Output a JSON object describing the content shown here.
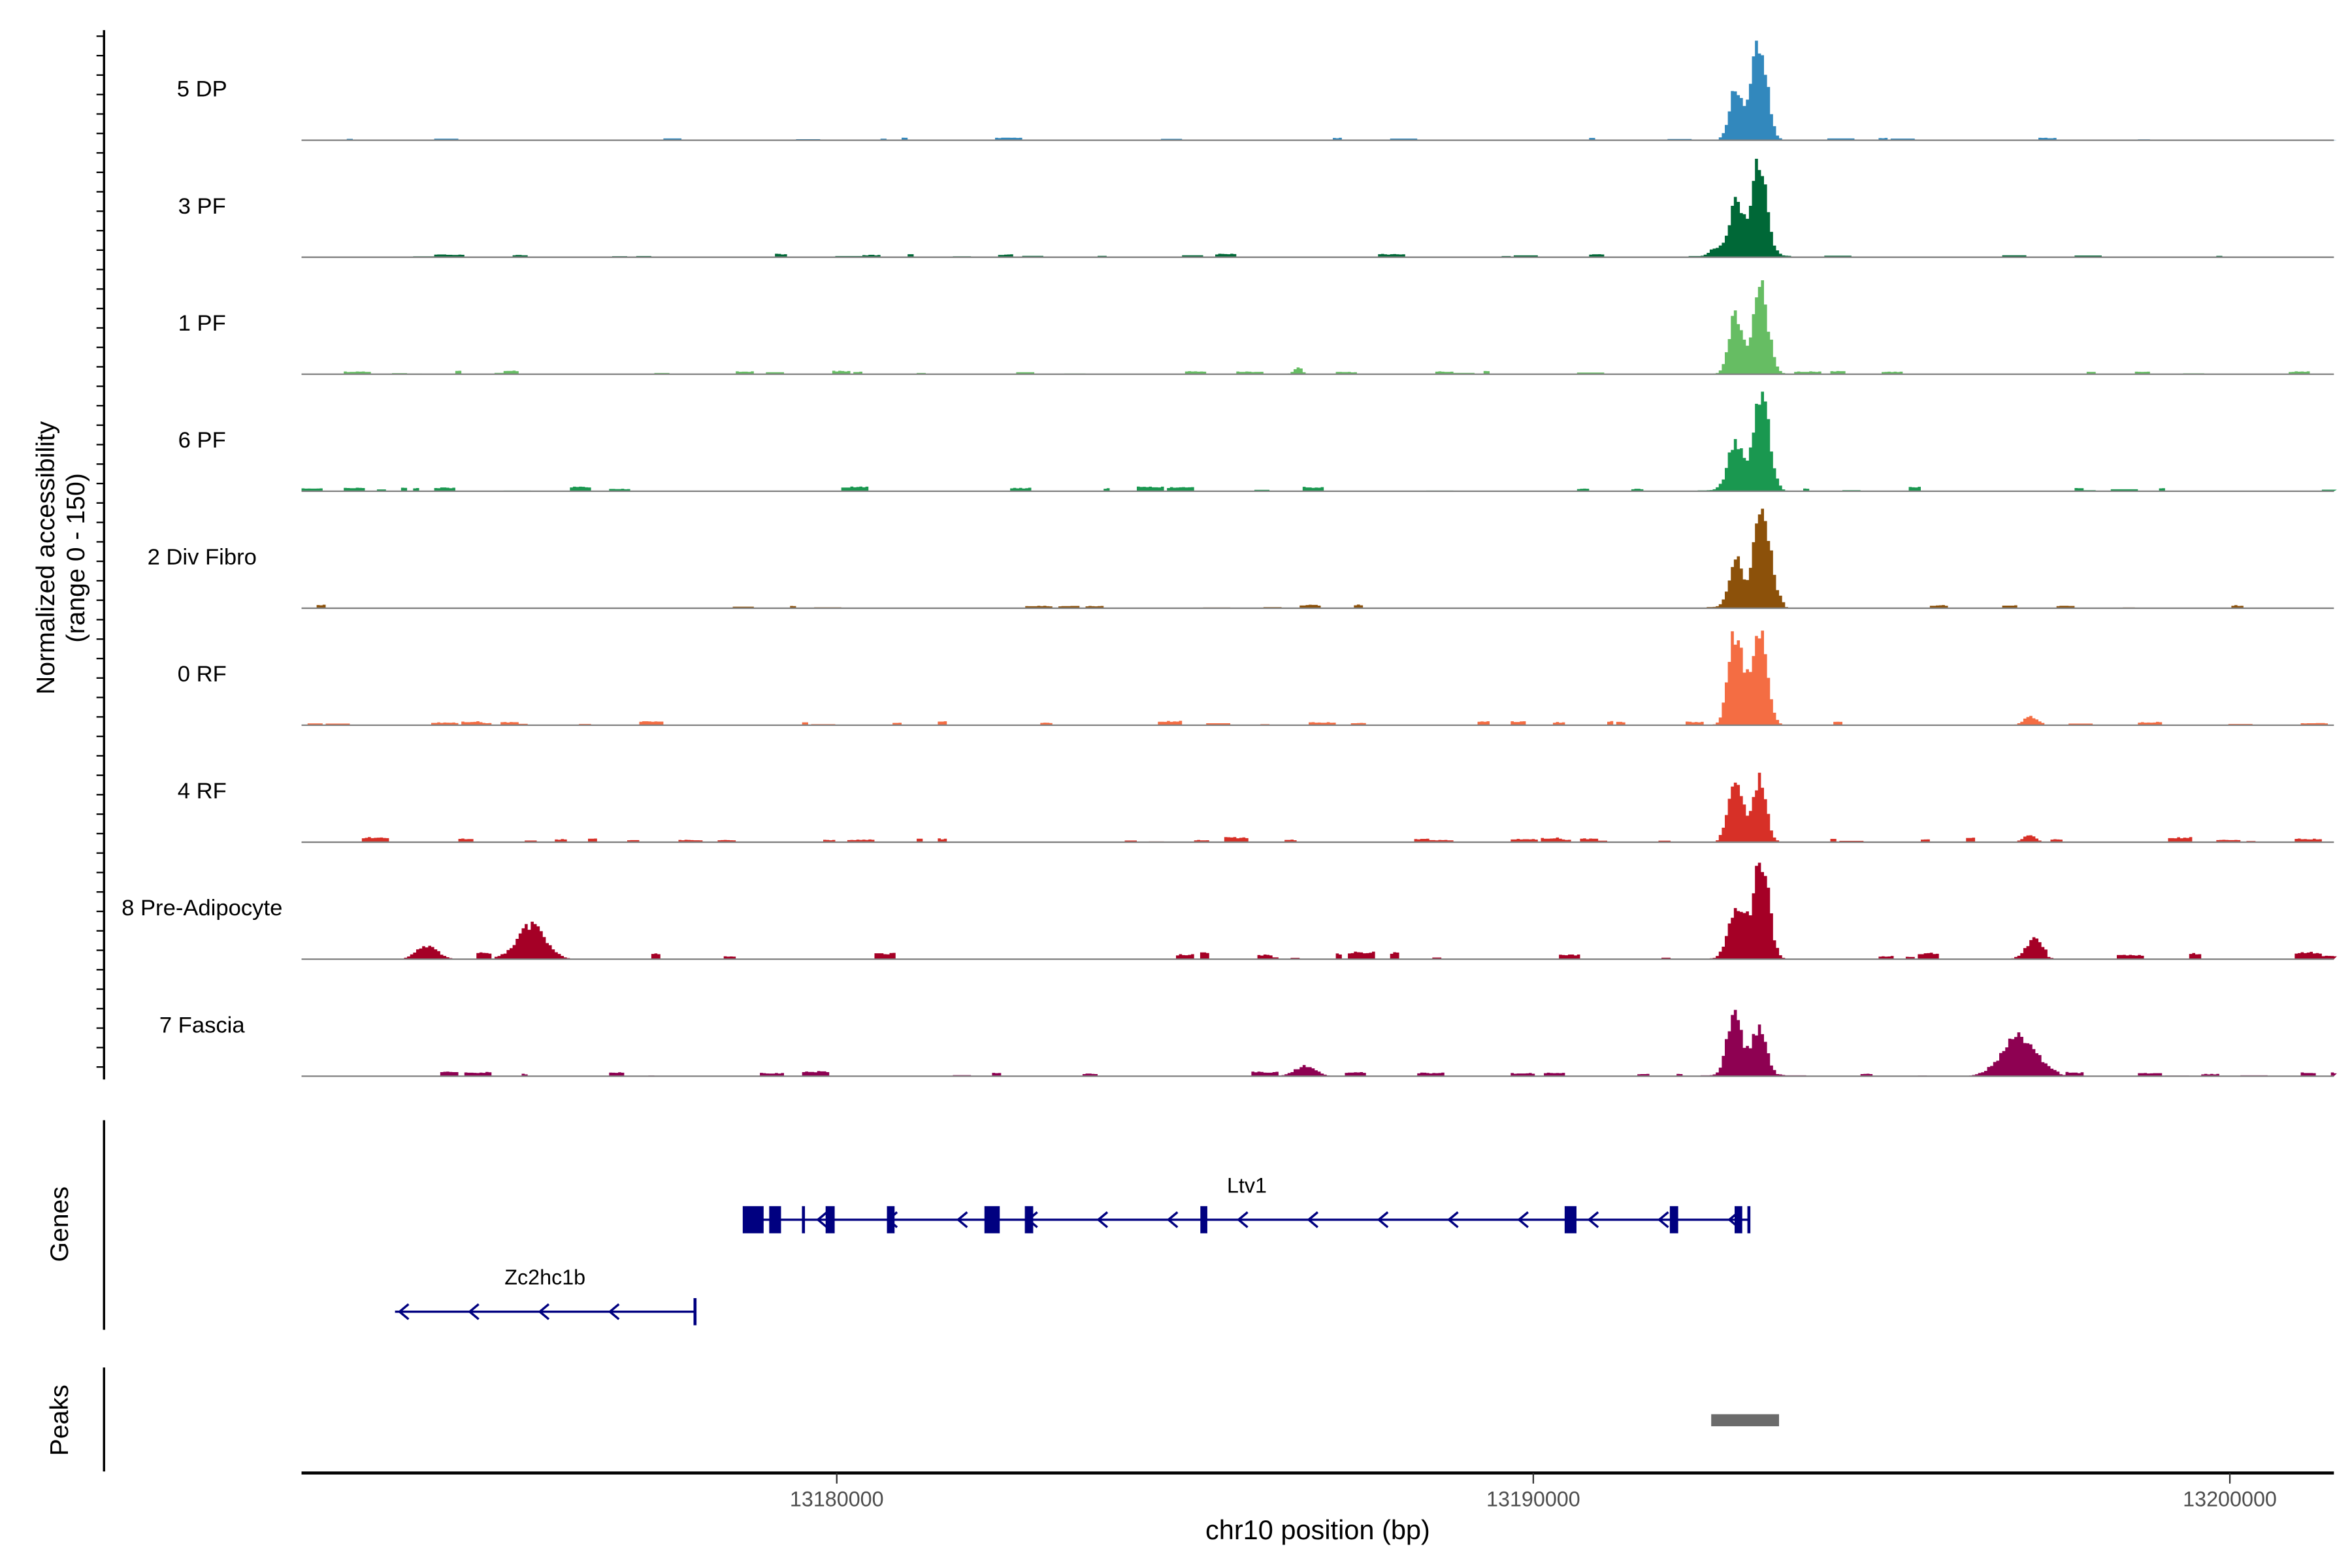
{
  "chart_data": {
    "type": "area",
    "title": "",
    "xlabel": "chr10 position (bp)",
    "ylabel": "Normalized accessibility",
    "ylabel_sub": "(range 0 - 150)",
    "ylim": [
      0,
      150
    ],
    "xlim": [
      13172316,
      13201494
    ],
    "xticks": [
      13180000,
      13190000,
      13200000
    ],
    "xtick_labels": [
      "13180000",
      "13190000",
      "13200000"
    ],
    "tracks": [
      {
        "name": "5 DP",
        "color": "#3288BD",
        "peaks": [
          [
            13192880,
            75,
            90
          ],
          [
            13193220,
            150,
            110
          ]
        ],
        "noise": 4,
        "seed": 1
      },
      {
        "name": "3 PF",
        "color": "#006837",
        "peaks": [
          [
            13192880,
            80,
            100
          ],
          [
            13193220,
            140,
            110
          ],
          [
            13192600,
            12,
            80
          ]
        ],
        "noise": 5,
        "seed": 2
      },
      {
        "name": "1 PF",
        "color": "#66BD63",
        "peaks": [
          [
            13192880,
            90,
            90
          ],
          [
            13193240,
            130,
            110
          ],
          [
            13186600,
            10,
            60
          ]
        ],
        "noise": 5,
        "seed": 3
      },
      {
        "name": "6 PF",
        "color": "#1A9850",
        "peaks": [
          [
            13192880,
            70,
            110
          ],
          [
            13193260,
            145,
            110
          ]
        ],
        "noise": 7,
        "seed": 4
      },
      {
        "name": "2 Div Fibro",
        "color": "#8C510A",
        "peaks": [
          [
            13192880,
            75,
            90
          ],
          [
            13193260,
            150,
            120
          ]
        ],
        "noise": 5,
        "seed": 5
      },
      {
        "name": "0 RF",
        "color": "#F46D43",
        "peaks": [
          [
            13192880,
            135,
            100
          ],
          [
            13193220,
            135,
            110
          ],
          [
            13197100,
            12,
            90
          ]
        ],
        "noise": 6,
        "seed": 6
      },
      {
        "name": "4 RF",
        "color": "#D73027",
        "peaks": [
          [
            13192880,
            100,
            100
          ],
          [
            13193220,
            95,
            100
          ],
          [
            13197100,
            10,
            90
          ]
        ],
        "noise": 7,
        "seed": 7
      },
      {
        "name": "8 Pre-Adipocyte",
        "color": "#A50026",
        "peaks": [
          [
            13192900,
            80,
            120
          ],
          [
            13193250,
            150,
            110
          ],
          [
            13175600,
            50,
            200
          ],
          [
            13197150,
            25,
            120
          ],
          [
            13174100,
            20,
            150
          ]
        ],
        "noise": 10,
        "seed": 8
      },
      {
        "name": "7 Fascia",
        "color": "#8E0152",
        "peaks": [
          [
            13192870,
            100,
            100
          ],
          [
            13193220,
            70,
            110
          ],
          [
            13196950,
            55,
            250
          ],
          [
            13186700,
            15,
            150
          ]
        ],
        "noise": 7,
        "seed": 9
      }
    ],
    "genes_label": "Genes",
    "genes": [
      {
        "name": "Ltv1",
        "start": 13178658,
        "end": 13193095,
        "strand": "-",
        "row": 0,
        "exons": [
          [
            13178650,
            13178950
          ],
          [
            13179030,
            13179200
          ],
          [
            13179500,
            13179540
          ],
          [
            13179840,
            13179970
          ],
          [
            13180720,
            13180830
          ],
          [
            13182120,
            13182340
          ],
          [
            13182700,
            13182820
          ],
          [
            13185220,
            13185320
          ],
          [
            13190450,
            13190620
          ],
          [
            13191960,
            13192080
          ],
          [
            13192890,
            13193000
          ]
        ]
      },
      {
        "name": "Zc2hc1b",
        "start": 13173658,
        "end": 13177965,
        "strand": "-",
        "row": 1,
        "exons": []
      }
    ],
    "peaks_label": "Peaks",
    "peak_regions": [
      [
        13192554,
        13193528
      ]
    ]
  }
}
